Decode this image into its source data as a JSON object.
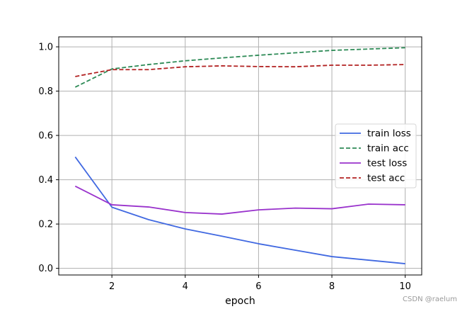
{
  "chart_data": {
    "type": "line",
    "title": "",
    "xlabel": "epoch",
    "ylabel": "",
    "x": [
      1,
      2,
      3,
      4,
      5,
      6,
      7,
      8,
      9,
      10
    ],
    "xlim": [
      0.55,
      10.45
    ],
    "ylim": [
      -0.03,
      1.045
    ],
    "xticks": [
      2,
      4,
      6,
      8,
      10
    ],
    "yticks": [
      0.0,
      0.2,
      0.4,
      0.6,
      0.8,
      1.0
    ],
    "xtick_labels": [
      "2",
      "4",
      "6",
      "8",
      "10"
    ],
    "ytick_labels": [
      "0.0",
      "0.2",
      "0.4",
      "0.6",
      "0.8",
      "1.0"
    ],
    "grid": true,
    "legend_position": "center-right",
    "series": [
      {
        "name": "train loss",
        "color": "#4169e1",
        "dash": "solid",
        "values": [
          0.503,
          0.276,
          0.22,
          0.178,
          0.145,
          0.111,
          0.082,
          0.053,
          0.037,
          0.021
        ]
      },
      {
        "name": "train acc",
        "color": "#2e8b57",
        "dash": "dashed",
        "values": [
          0.818,
          0.9,
          0.92,
          0.937,
          0.95,
          0.962,
          0.973,
          0.984,
          0.99,
          0.996
        ]
      },
      {
        "name": "test loss",
        "color": "#9932cc",
        "dash": "solid",
        "values": [
          0.371,
          0.287,
          0.277,
          0.252,
          0.245,
          0.264,
          0.272,
          0.269,
          0.29,
          0.287
        ]
      },
      {
        "name": "test acc",
        "color": "#b22222",
        "dash": "dashed",
        "values": [
          0.866,
          0.897,
          0.897,
          0.91,
          0.914,
          0.911,
          0.91,
          0.917,
          0.917,
          0.92
        ]
      }
    ]
  },
  "watermark": "CSDN @raelum"
}
